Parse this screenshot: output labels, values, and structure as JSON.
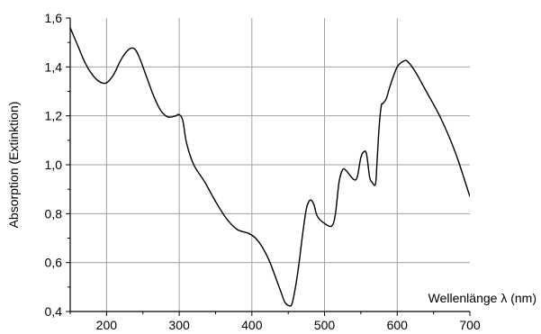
{
  "chart_data": {
    "type": "line",
    "title": "",
    "xlabel": "Wellenlänge λ (nm)",
    "ylabel": "Absorption (Extinktion)",
    "xlim": [
      150,
      700
    ],
    "ylim": [
      0.4,
      1.6
    ],
    "x_ticks": [
      200,
      300,
      400,
      500,
      600,
      700
    ],
    "x_tick_labels": [
      "200",
      "300",
      "400",
      "500",
      "600",
      "700"
    ],
    "y_ticks": [
      0.4,
      0.6,
      0.8,
      1.0,
      1.2,
      1.4,
      1.6
    ],
    "y_tick_labels": [
      "0,4",
      "0,6",
      "0,8",
      "1,0",
      "1,2",
      "1,4",
      "1,6"
    ],
    "grid": true,
    "legend": "none",
    "line_color": "#000000",
    "grid_color": "#a0a0a0",
    "series": [
      {
        "x": [
          150,
          160,
          170,
          180,
          190,
          200,
          210,
          220,
          230,
          238,
          245,
          255,
          265,
          275,
          285,
          295,
          300,
          305,
          310,
          320,
          335,
          350,
          365,
          380,
          395,
          405,
          415,
          425,
          435,
          440,
          445,
          450,
          455,
          460,
          465,
          470,
          475,
          480,
          485,
          490,
          500,
          510,
          515,
          520,
          525,
          530,
          540,
          545,
          550,
          555,
          558,
          562,
          565,
          570,
          572,
          575,
          578,
          580,
          585,
          590,
          600,
          610,
          615,
          625,
          640,
          660,
          680,
          700
        ],
        "y": [
          1.56,
          1.49,
          1.42,
          1.37,
          1.34,
          1.335,
          1.37,
          1.43,
          1.47,
          1.475,
          1.44,
          1.36,
          1.28,
          1.22,
          1.195,
          1.2,
          1.205,
          1.18,
          1.09,
          1.0,
          0.93,
          0.85,
          0.78,
          0.735,
          0.72,
          0.7,
          0.66,
          0.6,
          0.52,
          0.48,
          0.44,
          0.425,
          0.43,
          0.5,
          0.6,
          0.72,
          0.82,
          0.855,
          0.84,
          0.79,
          0.76,
          0.75,
          0.8,
          0.93,
          0.98,
          0.975,
          0.94,
          0.95,
          1.03,
          1.055,
          1.04,
          0.95,
          0.93,
          0.92,
          1.0,
          1.15,
          1.24,
          1.25,
          1.27,
          1.32,
          1.4,
          1.425,
          1.42,
          1.38,
          1.3,
          1.19,
          1.05,
          0.87
        ]
      }
    ]
  }
}
